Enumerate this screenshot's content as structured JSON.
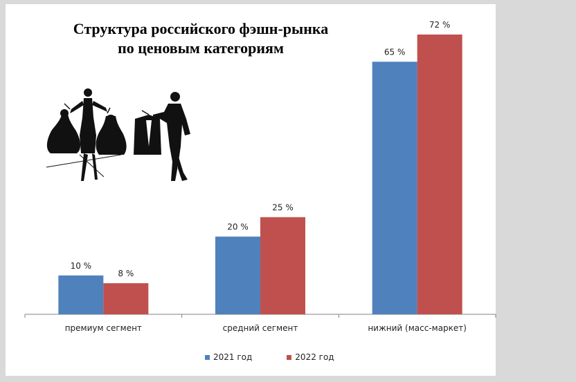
{
  "chart_data": {
    "type": "bar",
    "title_lines": [
      "Структура российского фэшн-рынка",
      "по ценовым категориям"
    ],
    "categories": [
      "премиум сегмент",
      "средний сегмент",
      "нижний (масс-маркет)"
    ],
    "series": [
      {
        "name": "2021 год",
        "values": [
          10,
          20,
          65
        ],
        "labels": [
          "10 %",
          "20 %",
          "65 %"
        ],
        "color": "#4f81bd"
      },
      {
        "name": "2022 год",
        "values": [
          8,
          25,
          72
        ],
        "labels": [
          "8 %",
          "25 %",
          "72 %"
        ],
        "color": "#c0504d"
      }
    ],
    "ylim": [
      0,
      78
    ],
    "grid": false,
    "legend_position": "bottom",
    "xlabel": "",
    "ylabel": ""
  },
  "illustration": {
    "icon_name": "fashion-shoppers-silhouette-icon"
  }
}
